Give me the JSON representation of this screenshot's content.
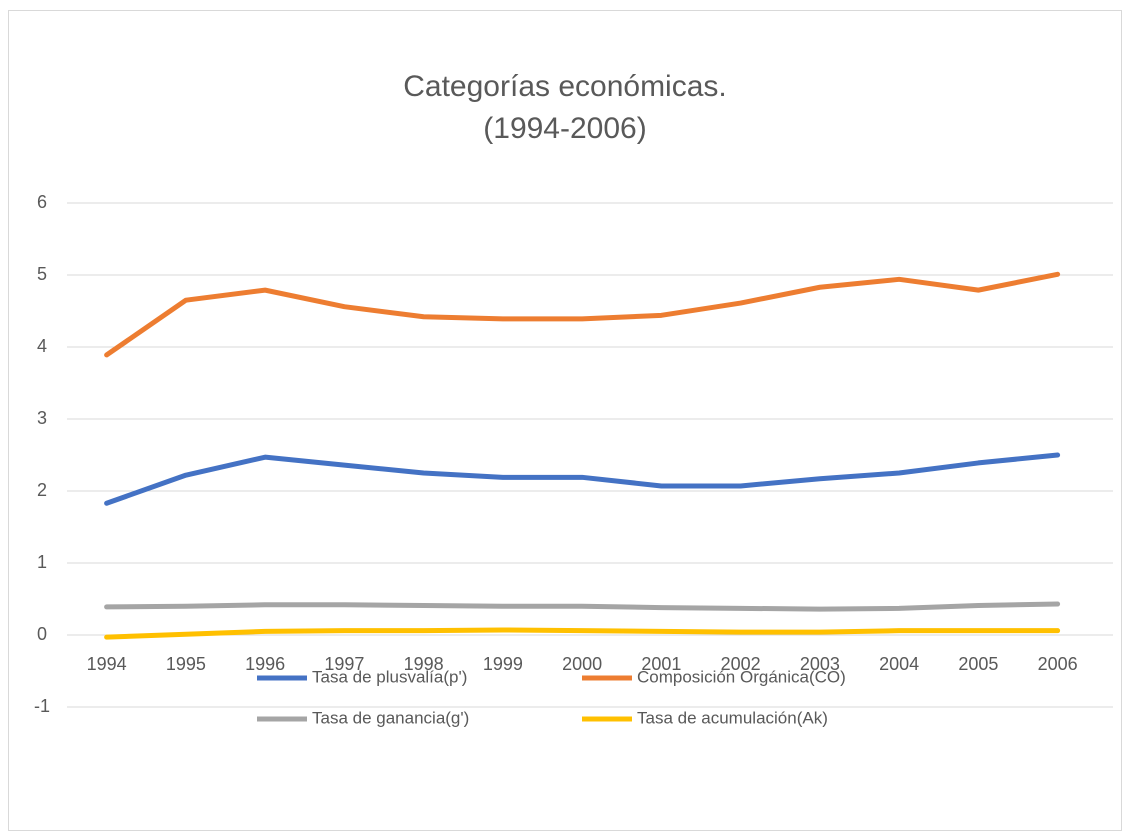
{
  "chart_data": {
    "type": "line",
    "title": "Categorías económicas.",
    "subtitle": "(1994-2006)",
    "categories": [
      "1994",
      "1995",
      "1996",
      "1997",
      "1998",
      "1999",
      "2000",
      "2001",
      "2002",
      "2003",
      "2004",
      "2005",
      "2006"
    ],
    "series": [
      {
        "name": "Tasa de plusvalía(p')",
        "color": "#4472c4",
        "values": [
          1.83,
          2.22,
          2.47,
          2.36,
          2.25,
          2.19,
          2.19,
          2.07,
          2.07,
          2.17,
          2.25,
          2.39,
          2.5
        ]
      },
      {
        "name": "Composición Orgánica(CO)",
        "color": "#ed7d31",
        "values": [
          3.89,
          4.65,
          4.79,
          4.56,
          4.42,
          4.39,
          4.39,
          4.44,
          4.61,
          4.83,
          4.94,
          4.79,
          5.01
        ]
      },
      {
        "name": "Tasa de ganancia(g')",
        "color": "#a5a5a5",
        "values": [
          0.39,
          0.4,
          0.42,
          0.42,
          0.41,
          0.4,
          0.4,
          0.38,
          0.37,
          0.36,
          0.37,
          0.41,
          0.43
        ]
      },
      {
        "name": "Tasa de acumulación(Ak)",
        "color": "#ffc000",
        "values": [
          -0.03,
          0.01,
          0.05,
          0.06,
          0.06,
          0.07,
          0.06,
          0.05,
          0.04,
          0.04,
          0.06,
          0.06,
          0.06
        ]
      }
    ],
    "ylim": [
      -1,
      6
    ],
    "yticks": [
      -1,
      0,
      1,
      2,
      3,
      4,
      5,
      6
    ],
    "grid": true,
    "legend": "bottom"
  }
}
